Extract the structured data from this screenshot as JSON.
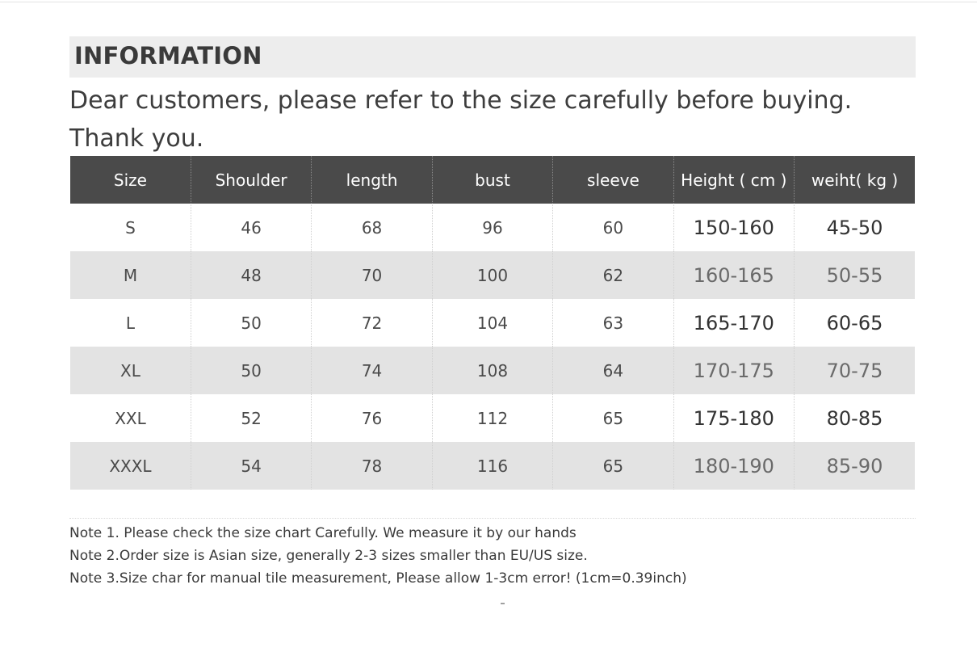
{
  "header": {
    "title": "INFORMATION",
    "intro_line1": "Dear customers, please refer to the size carefully before buying.",
    "intro_line2": "Thank you."
  },
  "table": {
    "columns": [
      "Size",
      "Shoulder",
      "length",
      "bust",
      "sleeve",
      "Height ( cm )",
      "weiht( kg )"
    ],
    "rows": [
      [
        "S",
        "46",
        "68",
        "96",
        "60",
        "150-160",
        "45-50"
      ],
      [
        "M",
        "48",
        "70",
        "100",
        "62",
        "160-165",
        "50-55"
      ],
      [
        "L",
        "50",
        "72",
        "104",
        "63",
        "165-170",
        "60-65"
      ],
      [
        "XL",
        "50",
        "74",
        "108",
        "64",
        "170-175",
        "70-75"
      ],
      [
        "XXL",
        "52",
        "76",
        "112",
        "65",
        "175-180",
        "80-85"
      ],
      [
        "XXXL",
        "54",
        "78",
        "116",
        "65",
        "180-190",
        "85-90"
      ]
    ]
  },
  "notes": [
    "Note 1. Please check the size chart Carefully. We measure it by our hands",
    "Note 2.Order size is Asian size, generally 2-3 sizes smaller than EU/US size.",
    "Note 3.Size char for manual tile measurement, Please allow 1-3cm error!  (1cm=0.39inch)"
  ],
  "colors": {
    "header_bg": "#4a4a4a",
    "stripe_bg": "#e3e3e3",
    "info_bar_bg": "#ededed"
  }
}
